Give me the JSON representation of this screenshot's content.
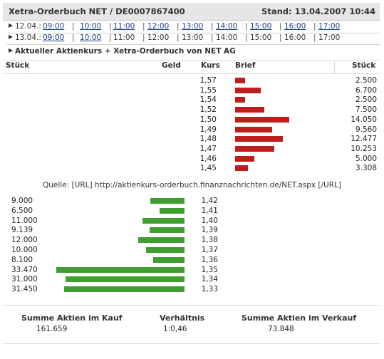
{
  "header": {
    "title": "Xetra-Orderbuch NET / DE0007867400",
    "stand": "Stand: 13.04.2007 10:44"
  },
  "nav": {
    "rows": [
      {
        "date": "12.04.:",
        "times": [
          {
            "t": "09:00",
            "link": true
          },
          {
            "t": "10:00",
            "link": true
          },
          {
            "t": "11:00",
            "link": true
          },
          {
            "t": "12:00",
            "link": true
          },
          {
            "t": "13:00",
            "link": true
          },
          {
            "t": "14:00",
            "link": true
          },
          {
            "t": "15:00",
            "link": true
          },
          {
            "t": "16:00",
            "link": true
          },
          {
            "t": "17:00",
            "link": true
          }
        ]
      },
      {
        "date": "13.04.:",
        "times": [
          {
            "t": "09:00",
            "link": true
          },
          {
            "t": "10:00",
            "link": true
          },
          {
            "t": "11:00",
            "link": false
          },
          {
            "t": "12:00",
            "link": false
          },
          {
            "t": "13:00",
            "link": false
          },
          {
            "t": "14:00",
            "link": false
          },
          {
            "t": "15:00",
            "link": false
          },
          {
            "t": "16:00",
            "link": false
          },
          {
            "t": "17:00",
            "link": false
          }
        ]
      }
    ],
    "description": "Aktueller Aktienkurs + Xetra-Orderbuch von NET AG"
  },
  "columns": {
    "stueck_left": "Stück",
    "geld": "Geld",
    "kurs": "Kurs",
    "brief": "Brief",
    "stueck_right": "Stück"
  },
  "ask": [
    {
      "kurs": "1,57",
      "stueck": "2.500"
    },
    {
      "kurs": "1,55",
      "stueck": "6.700"
    },
    {
      "kurs": "1,54",
      "stueck": "2.500"
    },
    {
      "kurs": "1,52",
      "stueck": "7.500"
    },
    {
      "kurs": "1,50",
      "stueck": "14.050"
    },
    {
      "kurs": "1,49",
      "stueck": "9.560"
    },
    {
      "kurs": "1,48",
      "stueck": "12.477"
    },
    {
      "kurs": "1,47",
      "stueck": "10.253"
    },
    {
      "kurs": "1,46",
      "stueck": "5.000"
    },
    {
      "kurs": "1,45",
      "stueck": "3.308"
    }
  ],
  "bid": [
    {
      "kurs": "1,42",
      "stueck": "9.000"
    },
    {
      "kurs": "1,41",
      "stueck": "6.500"
    },
    {
      "kurs": "1,40",
      "stueck": "11.000"
    },
    {
      "kurs": "1,39",
      "stueck": "9.139"
    },
    {
      "kurs": "1,38",
      "stueck": "12.000"
    },
    {
      "kurs": "1,37",
      "stueck": "10.000"
    },
    {
      "kurs": "1,36",
      "stueck": "8.100"
    },
    {
      "kurs": "1,35",
      "stueck": "33.470"
    },
    {
      "kurs": "1,34",
      "stueck": "31.000"
    },
    {
      "kurs": "1,33",
      "stueck": "31.450"
    }
  ],
  "source": "Quelle: [URL] http://aktienkurs-orderbuch.finanznachrichten.de/NET.aspx [/URL]",
  "summary": {
    "kauf_label": "Summe Aktien im Kauf",
    "kauf_value": "161.659",
    "verhaeltnis_label": "Verhältnis",
    "verhaeltnis_value": "1:0,46",
    "verkauf_label": "Summe Aktien im Verkauf",
    "verkauf_value": "73.848"
  },
  "colors": {
    "ask_bar": "#bf1c1c",
    "bid_bar": "#3f9e2f",
    "link": "#1a3d8f"
  }
}
